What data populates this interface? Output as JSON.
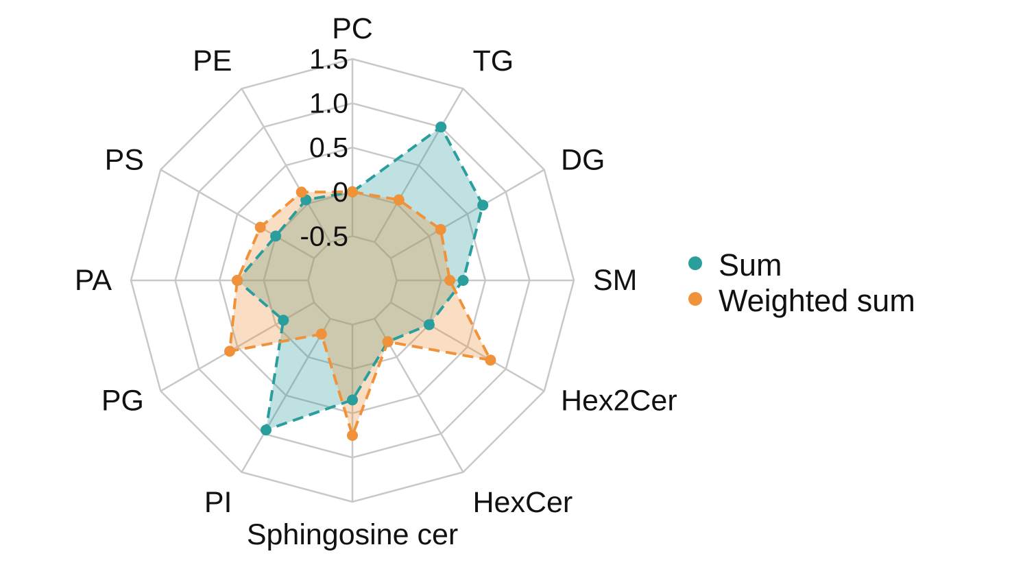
{
  "chart_data": {
    "type": "radar",
    "categories": [
      "PC",
      "TG",
      "DG",
      "SM",
      "Hex2Cer",
      "HexCer",
      "Sphingosine cer",
      "PI",
      "PG",
      "PA",
      "PS",
      "PE"
    ],
    "series": [
      {
        "name": "Sum",
        "color": "#2a9d9d",
        "values": [
          0.0,
          1.0,
          0.7,
          0.25,
          0.0,
          -0.2,
          0.35,
          0.95,
          -0.1,
          0.3,
          0.0,
          0.05
        ]
      },
      {
        "name": "Weighted sum",
        "color": "#f0923a",
        "values": [
          0.0,
          0.05,
          0.15,
          0.1,
          0.8,
          -0.2,
          0.75,
          -0.3,
          0.6,
          0.3,
          0.2,
          0.15
        ]
      }
    ],
    "radial_ticks": [
      "-0.5",
      "0",
      "0.5",
      "1.0",
      "1.5"
    ],
    "rmin": -1.0,
    "rmax": 1.5,
    "grid_rings": [
      -0.5,
      0.0,
      0.5,
      1.0,
      1.5
    ],
    "line_style": "dashed",
    "fill_opacity": 0.3,
    "legend_position": "right"
  }
}
